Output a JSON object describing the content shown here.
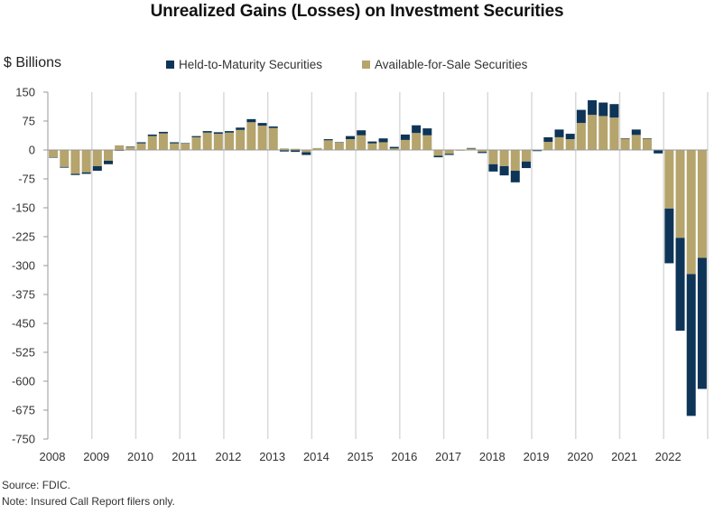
{
  "chart_data": {
    "type": "bar",
    "stacked": true,
    "title": "Unrealized Gains (Losses) on Investment Securities",
    "ylabel": "$ Billions",
    "xlabel": "",
    "ylim": [
      -750,
      150
    ],
    "yticks": [
      150,
      75,
      0,
      -75,
      -150,
      -225,
      -300,
      -375,
      -450,
      -525,
      -600,
      -675,
      -750
    ],
    "xtick_labels": [
      "2008",
      "2009",
      "2010",
      "2011",
      "2012",
      "2013",
      "2014",
      "2015",
      "2016",
      "2017",
      "2018",
      "2019",
      "2020",
      "2021",
      "2022"
    ],
    "grid": "vertical year separators",
    "legend_position": "top",
    "quarters_per_year": 4,
    "categories": [
      "2008Q1",
      "2008Q2",
      "2008Q3",
      "2008Q4",
      "2009Q1",
      "2009Q2",
      "2009Q3",
      "2009Q4",
      "2010Q1",
      "2010Q2",
      "2010Q3",
      "2010Q4",
      "2011Q1",
      "2011Q2",
      "2011Q3",
      "2011Q4",
      "2012Q1",
      "2012Q2",
      "2012Q3",
      "2012Q4",
      "2013Q1",
      "2013Q2",
      "2013Q3",
      "2013Q4",
      "2014Q1",
      "2014Q2",
      "2014Q3",
      "2014Q4",
      "2015Q1",
      "2015Q2",
      "2015Q3",
      "2015Q4",
      "2016Q1",
      "2016Q2",
      "2016Q3",
      "2016Q4",
      "2017Q1",
      "2017Q2",
      "2017Q3",
      "2017Q4",
      "2018Q1",
      "2018Q2",
      "2018Q3",
      "2018Q4",
      "2019Q1",
      "2019Q2",
      "2019Q3",
      "2019Q4",
      "2020Q1",
      "2020Q2",
      "2020Q3",
      "2020Q4",
      "2021Q1",
      "2021Q2",
      "2021Q3",
      "2021Q4",
      "2022Q1",
      "2022Q2",
      "2022Q3",
      "2022Q4"
    ],
    "series": [
      {
        "name": "Available-for-Sale Securities",
        "color": "#b5a46c",
        "values": [
          -19,
          -44,
          -62,
          -58,
          -42,
          -28,
          12,
          8,
          17,
          36,
          43,
          17,
          17,
          33,
          45,
          42,
          45,
          52,
          72,
          63,
          57,
          4,
          3,
          -6,
          5,
          25,
          20,
          28,
          38,
          17,
          20,
          4,
          26,
          44,
          38,
          -15,
          -10,
          -2,
          5,
          -5,
          -37,
          -42,
          -54,
          -30,
          -1,
          21,
          33,
          28,
          70,
          91,
          88,
          84,
          30,
          39,
          30,
          -1,
          -152,
          -228,
          -322,
          -280
        ]
      },
      {
        "name": "Held-to-Maturity Securities",
        "color": "#0e3557",
        "values": [
          -1,
          -2,
          -3,
          -4,
          -12,
          -9,
          -2,
          1,
          3,
          4,
          4,
          3,
          1,
          3,
          4,
          4,
          4,
          6,
          8,
          7,
          4,
          -4,
          -5,
          -7,
          -1,
          3,
          0,
          8,
          13,
          5,
          10,
          4,
          14,
          20,
          18,
          -4,
          -3,
          0,
          0,
          -3,
          -19,
          -24,
          -30,
          -17,
          -2,
          12,
          20,
          14,
          34,
          38,
          35,
          35,
          0,
          14,
          0,
          -8,
          -142,
          -241,
          -368,
          -340
        ]
      }
    ]
  },
  "legend": {
    "items": [
      {
        "label": "Held-to-Maturity Securities",
        "color": "#0e3557"
      },
      {
        "label": "Available-for-Sale Securities",
        "color": "#b5a46c"
      }
    ]
  },
  "footer": {
    "source": "Source: FDIC.",
    "note": "Note: Insured Call Report filers only."
  }
}
